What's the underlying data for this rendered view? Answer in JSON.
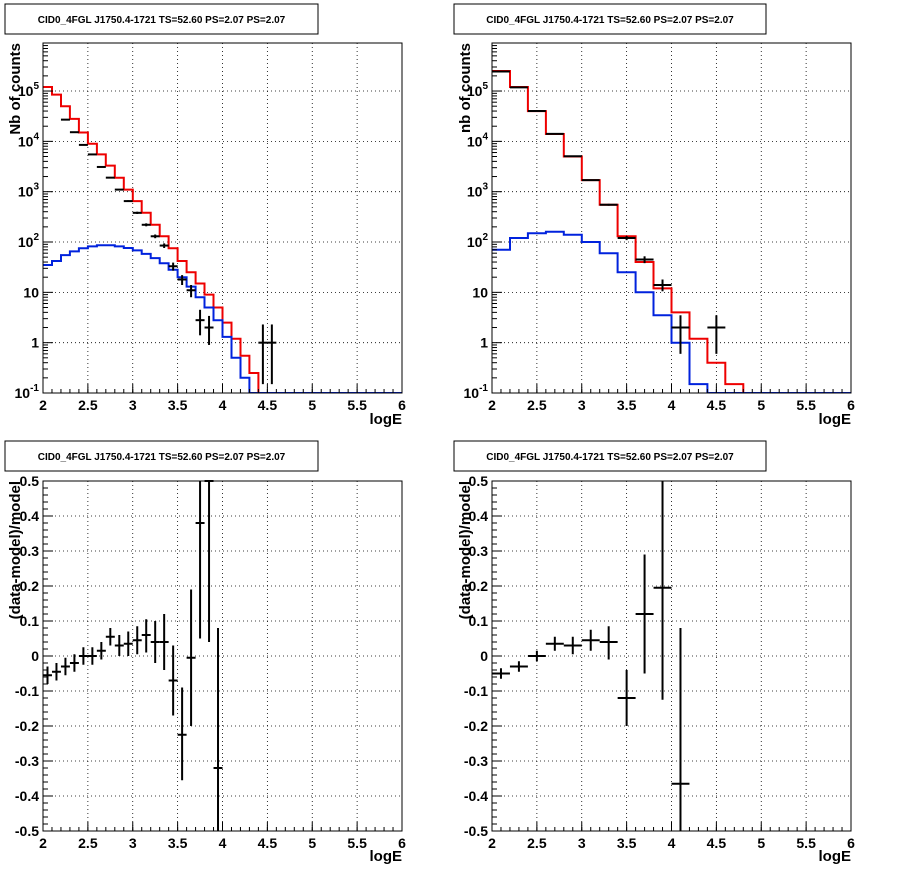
{
  "colors": {
    "data": "#000000",
    "model_total": "#ee0000",
    "model_source": "#0022dd",
    "grid": "#000000",
    "frame": "#000000"
  },
  "chart_data": [
    {
      "type": "line",
      "title": "CID0_4FGL J1750.4-1721 TS=52.60 PS=2.07 PS=2.07",
      "xlabel": "logE",
      "ylabel": "Nb of counts",
      "xlim": [
        2,
        6
      ],
      "ylim": [
        0.1,
        900000
      ],
      "yscale": "log",
      "grid": true,
      "x_ticks": [
        "2",
        "2.5",
        "3",
        "3.5",
        "4",
        "4.5",
        "5",
        "5.5",
        "6"
      ],
      "y_ticks": [
        "10-1",
        "1",
        "10",
        "102",
        "103",
        "104",
        "105"
      ],
      "bin_edges": [
        2.0,
        2.1,
        2.2,
        2.3,
        2.4,
        2.5,
        2.6,
        2.7,
        2.8,
        2.9,
        3.0,
        3.1,
        3.2,
        3.3,
        3.4,
        3.5,
        3.6,
        3.7,
        3.8,
        3.9,
        4.0,
        4.1,
        4.2,
        4.3,
        4.4,
        4.5,
        4.6,
        4.7,
        4.8,
        4.9,
        5.0,
        5.1,
        5.2,
        5.3,
        5.4,
        5.5,
        5.6,
        5.7,
        5.8,
        5.9,
        6.0
      ],
      "series": [
        {
          "role": "model_total",
          "values": [
            120000,
            85000,
            50000,
            28000,
            15000,
            9000,
            5500,
            3300,
            1900,
            1100,
            650,
            380,
            220,
            130,
            75,
            42,
            25,
            15,
            9,
            5,
            2.5,
            1.2,
            0.55,
            0.25,
            0.1,
            0.1,
            0.1,
            0.1,
            0.1,
            0.1,
            0.1,
            0.1,
            0.1,
            0.1,
            0.1,
            0.1,
            0.1,
            0.1,
            0.1,
            0.1
          ]
        },
        {
          "role": "model_source",
          "values": [
            35,
            42,
            55,
            65,
            75,
            82,
            86,
            86,
            82,
            76,
            68,
            58,
            48,
            38,
            28,
            20,
            13,
            8,
            5,
            2.8,
            1.3,
            0.5,
            0.2,
            0.1,
            0.1,
            0.1,
            0.1,
            0.1,
            0.1,
            0.1,
            0.1,
            0.1,
            0.1,
            0.1,
            0.1,
            0.1,
            0.1,
            0.1,
            0.1,
            0.1
          ]
        }
      ],
      "points": [
        {
          "x": 2.25,
          "y": 27000,
          "ylo": 26800,
          "yhi": 27200
        },
        {
          "x": 2.35,
          "y": 15200,
          "ylo": 15000,
          "yhi": 15400
        },
        {
          "x": 2.45,
          "y": 8500,
          "ylo": 8350,
          "yhi": 8650
        },
        {
          "x": 2.55,
          "y": 5500,
          "ylo": 5400,
          "yhi": 5600
        },
        {
          "x": 2.65,
          "y": 3100,
          "ylo": 3040,
          "yhi": 3160
        },
        {
          "x": 2.75,
          "y": 1900,
          "ylo": 1850,
          "yhi": 1950
        },
        {
          "x": 2.85,
          "y": 1100,
          "ylo": 1070,
          "yhi": 1130
        },
        {
          "x": 2.95,
          "y": 650,
          "ylo": 625,
          "yhi": 675
        },
        {
          "x": 3.05,
          "y": 380,
          "ylo": 360,
          "yhi": 400
        },
        {
          "x": 3.15,
          "y": 220,
          "ylo": 205,
          "yhi": 235
        },
        {
          "x": 3.25,
          "y": 130,
          "ylo": 119,
          "yhi": 141
        },
        {
          "x": 3.35,
          "y": 85,
          "ylo": 76,
          "yhi": 94
        },
        {
          "x": 3.45,
          "y": 33,
          "ylo": 27,
          "yhi": 39
        },
        {
          "x": 3.55,
          "y": 18,
          "ylo": 14,
          "yhi": 22
        },
        {
          "x": 3.65,
          "y": 11,
          "ylo": 8,
          "yhi": 14
        },
        {
          "x": 3.75,
          "y": 2.8,
          "ylo": 1.4,
          "yhi": 4.5
        },
        {
          "x": 3.85,
          "y": 2,
          "ylo": 0.9,
          "yhi": 3.4
        },
        {
          "x": 4.45,
          "y": 1,
          "ylo": 0.15,
          "yhi": 2.3
        },
        {
          "x": 4.55,
          "y": 1,
          "ylo": 0.15,
          "yhi": 2.3
        }
      ]
    },
    {
      "type": "line",
      "title": "CID0_4FGL J1750.4-1721 TS=52.60 PS=2.07 PS=2.07",
      "xlabel": "logE",
      "ylabel": "nb of counts",
      "xlim": [
        2,
        6
      ],
      "ylim": [
        0.1,
        900000
      ],
      "yscale": "log",
      "grid": true,
      "x_ticks": [
        "2",
        "2.5",
        "3",
        "3.5",
        "4",
        "4.5",
        "5",
        "5.5",
        "6"
      ],
      "y_ticks": [
        "10-1",
        "1",
        "10",
        "102",
        "103",
        "104",
        "105"
      ],
      "bin_edges": [
        2.0,
        2.2,
        2.4,
        2.6,
        2.8,
        3.0,
        3.2,
        3.4,
        3.6,
        3.8,
        4.0,
        4.2,
        4.4,
        4.6,
        4.8,
        5.0,
        5.2,
        5.4,
        5.6,
        5.8,
        6.0
      ],
      "series": [
        {
          "role": "model_total",
          "values": [
            250000,
            120000,
            40000,
            14000,
            5000,
            1700,
            550,
            130,
            40,
            12,
            4,
            1.2,
            0.4,
            0.15,
            0.1,
            0.1,
            0.1,
            0.1,
            0.1,
            0.1
          ]
        },
        {
          "role": "model_source",
          "values": [
            70,
            120,
            150,
            160,
            140,
            100,
            60,
            25,
            10,
            3.5,
            1,
            0.15,
            0.1,
            0.1,
            0.1,
            0.1,
            0.1,
            0.1,
            0.1,
            0.1
          ]
        }
      ],
      "points": [
        {
          "x": 2.1,
          "y": 245000,
          "ylo": 244000,
          "yhi": 246000
        },
        {
          "x": 2.3,
          "y": 118000,
          "ylo": 117300,
          "yhi": 118700
        },
        {
          "x": 2.5,
          "y": 40200,
          "ylo": 39800,
          "yhi": 40600
        },
        {
          "x": 2.7,
          "y": 14100,
          "ylo": 13900,
          "yhi": 14300
        },
        {
          "x": 2.9,
          "y": 5050,
          "ylo": 4980,
          "yhi": 5120
        },
        {
          "x": 3.1,
          "y": 1700,
          "ylo": 1660,
          "yhi": 1740
        },
        {
          "x": 3.3,
          "y": 550,
          "ylo": 527,
          "yhi": 573
        },
        {
          "x": 3.5,
          "y": 120,
          "ylo": 109,
          "yhi": 131
        },
        {
          "x": 3.7,
          "y": 45,
          "ylo": 38,
          "yhi": 52
        },
        {
          "x": 3.9,
          "y": 14,
          "ylo": 10.5,
          "yhi": 18
        },
        {
          "x": 4.1,
          "y": 2,
          "ylo": 0.6,
          "yhi": 3.5
        },
        {
          "x": 4.5,
          "y": 2,
          "ylo": 0.6,
          "yhi": 3.5
        }
      ]
    },
    {
      "type": "scatter",
      "title": "CID0_4FGL J1750.4-1721 TS=52.60 PS=2.07 PS=2.07",
      "xlabel": "logE",
      "ylabel": "(data-model)/model",
      "xlim": [
        2,
        6
      ],
      "ylim": [
        -0.5,
        0.5
      ],
      "yscale": "linear",
      "grid": true,
      "x_ticks": [
        "2",
        "2.5",
        "3",
        "3.5",
        "4",
        "4.5",
        "5",
        "5.5",
        "6"
      ],
      "y_ticks": [
        "-0.5",
        "-0.4",
        "-0.3",
        "-0.2",
        "-0.1",
        "0",
        "0.1",
        "0.2",
        "0.3",
        "0.4",
        "0.5"
      ],
      "points": [
        {
          "x": 2.05,
          "y": -0.055,
          "ylo": -0.08,
          "yhi": -0.03
        },
        {
          "x": 2.15,
          "y": -0.045,
          "ylo": -0.07,
          "yhi": -0.02
        },
        {
          "x": 2.25,
          "y": -0.03,
          "ylo": -0.055,
          "yhi": -0.005
        },
        {
          "x": 2.35,
          "y": -0.02,
          "ylo": -0.045,
          "yhi": 0.005
        },
        {
          "x": 2.45,
          "y": 0.0,
          "ylo": -0.025,
          "yhi": 0.025
        },
        {
          "x": 2.55,
          "y": 0.0,
          "ylo": -0.025,
          "yhi": 0.025
        },
        {
          "x": 2.65,
          "y": 0.015,
          "ylo": -0.01,
          "yhi": 0.04
        },
        {
          "x": 2.75,
          "y": 0.055,
          "ylo": 0.03,
          "yhi": 0.08
        },
        {
          "x": 2.85,
          "y": 0.03,
          "ylo": 0.0,
          "yhi": 0.06
        },
        {
          "x": 2.95,
          "y": 0.035,
          "ylo": 0.0,
          "yhi": 0.07
        },
        {
          "x": 3.05,
          "y": 0.045,
          "ylo": 0.005,
          "yhi": 0.085
        },
        {
          "x": 3.15,
          "y": 0.06,
          "ylo": 0.01,
          "yhi": 0.105
        },
        {
          "x": 3.25,
          "y": 0.04,
          "ylo": -0.02,
          "yhi": 0.1
        },
        {
          "x": 3.35,
          "y": 0.04,
          "ylo": -0.04,
          "yhi": 0.12
        },
        {
          "x": 3.45,
          "y": -0.07,
          "ylo": -0.17,
          "yhi": 0.03
        },
        {
          "x": 3.55,
          "y": -0.225,
          "ylo": -0.355,
          "yhi": -0.09
        },
        {
          "x": 3.65,
          "y": -0.005,
          "ylo": -0.2,
          "yhi": 0.19
        },
        {
          "x": 3.75,
          "y": 0.38,
          "ylo": 0.05,
          "yhi": 0.5
        },
        {
          "x": 3.85,
          "y": 0.5,
          "ylo": 0.04,
          "yhi": 0.5
        },
        {
          "x": 3.95,
          "y": -0.32,
          "ylo": -0.5,
          "yhi": 0.08
        }
      ]
    },
    {
      "type": "scatter",
      "title": "CID0_4FGL J1750.4-1721 TS=52.60 PS=2.07 PS=2.07",
      "xlabel": "logE",
      "ylabel": "(data-model)/model",
      "xlim": [
        2,
        6
      ],
      "ylim": [
        -0.5,
        0.5
      ],
      "yscale": "linear",
      "grid": true,
      "x_ticks": [
        "2",
        "2.5",
        "3",
        "3.5",
        "4",
        "4.5",
        "5",
        "5.5",
        "6"
      ],
      "y_ticks": [
        "-0.5",
        "-0.4",
        "-0.3",
        "-0.2",
        "-0.1",
        "0",
        "0.1",
        "0.2",
        "0.3",
        "0.4",
        "0.5"
      ],
      "points": [
        {
          "x": 2.1,
          "y": -0.05,
          "ylo": -0.065,
          "yhi": -0.035
        },
        {
          "x": 2.3,
          "y": -0.03,
          "ylo": -0.045,
          "yhi": -0.015
        },
        {
          "x": 2.5,
          "y": 0.0,
          "ylo": -0.015,
          "yhi": 0.015
        },
        {
          "x": 2.7,
          "y": 0.035,
          "ylo": 0.015,
          "yhi": 0.055
        },
        {
          "x": 2.9,
          "y": 0.03,
          "ylo": 0.005,
          "yhi": 0.055
        },
        {
          "x": 3.1,
          "y": 0.045,
          "ylo": 0.015,
          "yhi": 0.075
        },
        {
          "x": 3.3,
          "y": 0.04,
          "ylo": -0.01,
          "yhi": 0.085
        },
        {
          "x": 3.5,
          "y": -0.12,
          "ylo": -0.2,
          "yhi": -0.04
        },
        {
          "x": 3.7,
          "y": 0.12,
          "ylo": -0.05,
          "yhi": 0.29
        },
        {
          "x": 3.9,
          "y": 0.195,
          "ylo": -0.125,
          "yhi": 0.5
        },
        {
          "x": 4.1,
          "y": -0.365,
          "ylo": -0.5,
          "yhi": 0.08
        }
      ]
    }
  ]
}
